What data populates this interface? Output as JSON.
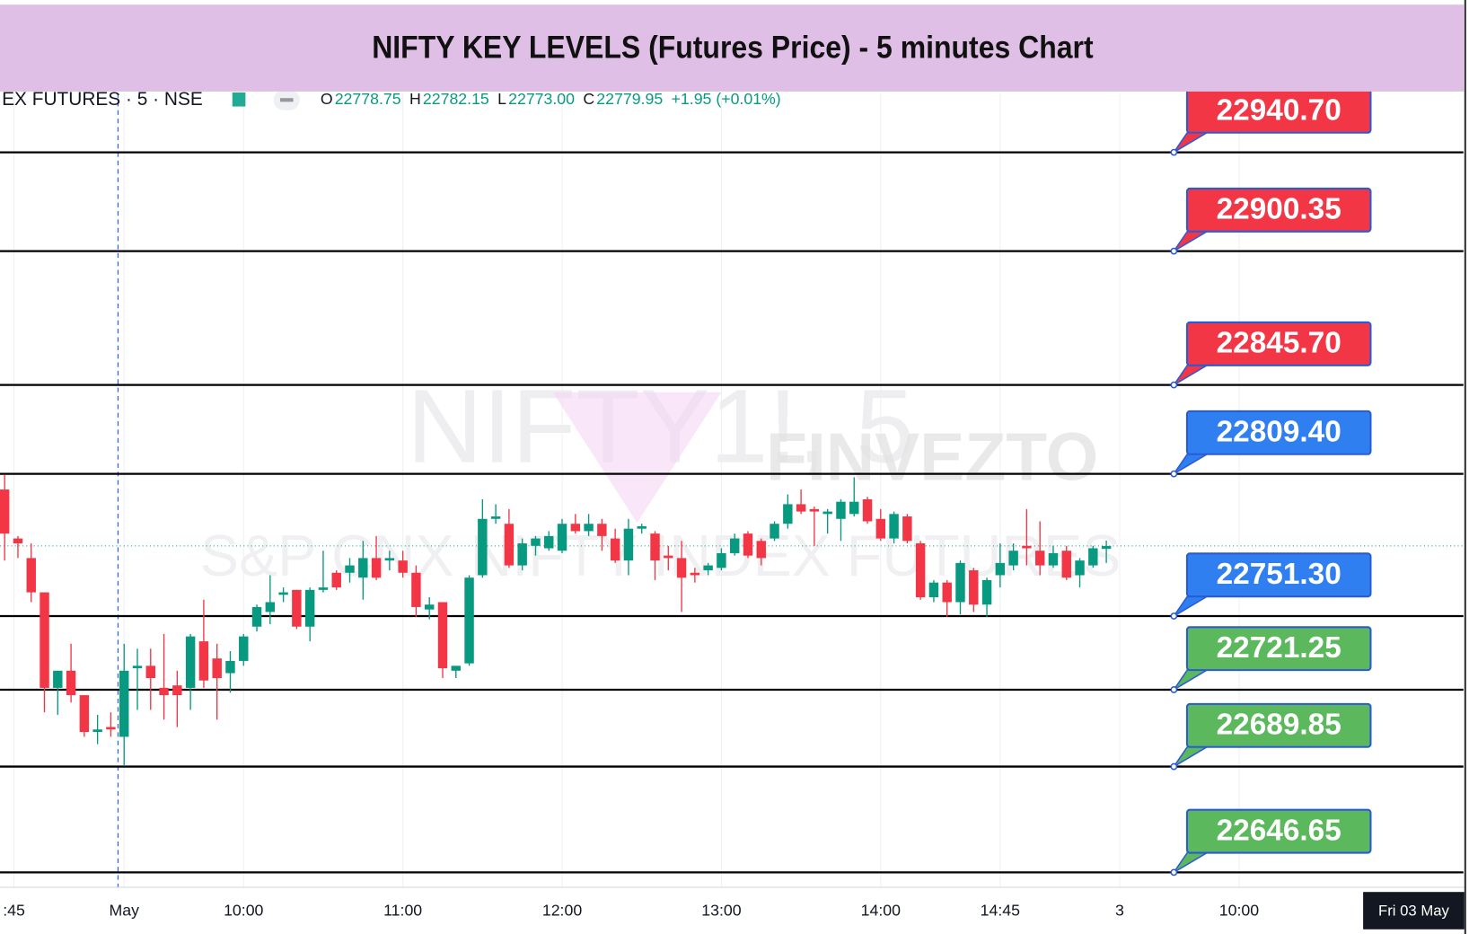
{
  "chart_data": {
    "type": "candlestick",
    "title": "NIFTY KEY LEVELS (Futures Price) - 5 minutes Chart",
    "symbol": "EX FUTURES · 5 · NSE",
    "ohlc_legend": [
      {
        "key": "O",
        "value": "22778.75"
      },
      {
        "key": "H",
        "value": "22782.15"
      },
      {
        "key": "L",
        "value": "22773.00"
      },
      {
        "key": "C",
        "value": "22779.95"
      }
    ],
    "change": "+1.95 (+0.01%)",
    "watermark": [
      "NIFTY1!, 5",
      "S&P CNX NIFTY INDEX FUTURES"
    ],
    "brand": "FINVEZTO",
    "cursor_date": "Fri 03 May",
    "up_color": "#089981",
    "down_color": "#f23645",
    "ylim": [
      22640.55,
      23002.9
    ],
    "xlim": [
      -0.35,
      109.9
    ],
    "xticks": [
      {
        "value": 0.7,
        "label": ":45"
      },
      {
        "value": 9,
        "label": "May"
      },
      {
        "value": 18,
        "label": "10:00"
      },
      {
        "value": 30,
        "label": "11:00"
      },
      {
        "value": 42,
        "label": "12:00"
      },
      {
        "value": 54,
        "label": "13:00"
      },
      {
        "value": 66,
        "label": "14:00"
      },
      {
        "value": 75,
        "label": "14:45"
      },
      {
        "value": 84,
        "label": "3"
      },
      {
        "value": 93,
        "label": "10:00"
      }
    ],
    "open": [
      22803,
      22783,
      22775,
      22761,
      22722,
      22729,
      22719,
      22704,
      22706,
      22702,
      22730,
      22731,
      22722,
      22723,
      22722,
      22741,
      22734,
      22728,
      22733,
      22747,
      22753,
      22760,
      22762,
      22747,
      22762,
      22769,
      22769,
      22767,
      22775,
      22774,
      22774,
      22769,
      22754,
      22757,
      22729,
      22732,
      22768,
      22791,
      22789,
      22772,
      22780,
      22779,
      22778,
      22789,
      22786,
      22789,
      22783,
      22774,
      22787,
      22785,
      22776,
      22775,
      22769,
      22770,
      22771,
      22777,
      22785,
      22782,
      22783,
      22789,
      22797,
      22795,
      22793,
      22791,
      22793,
      22799,
      22791,
      22783,
      22792,
      22781,
      22759,
      22765,
      22757,
      22770,
      22756,
      22768,
      22772,
      22780,
      22778,
      22772,
      22778,
      22768,
      22772,
      22778.75
    ],
    "high": [
      22809,
      22784,
      22781,
      22761,
      22729,
      22740,
      22719,
      22711,
      22712,
      22740,
      22738,
      22738,
      22744,
      22729,
      22744,
      22758,
      22740,
      22737,
      22744,
      22756,
      22768,
      22763,
      22762,
      22763,
      22778,
      22770,
      22775,
      22782,
      22784,
      22778,
      22778,
      22772,
      22759,
      22757,
      22731,
      22768,
      22799,
      22797,
      22795,
      22783,
      22784,
      22786,
      22791,
      22793,
      22793,
      22791,
      22787,
      22791,
      22789,
      22786,
      22780,
      22782,
      22771,
      22773,
      22779,
      22785,
      22786,
      22783,
      22790,
      22801,
      22803,
      22796,
      22795,
      22799,
      22808,
      22800,
      22795,
      22794,
      22793,
      22782,
      22766,
      22766,
      22774,
      22771,
      22767,
      22781,
      22781,
      22795,
      22790,
      22780,
      22780,
      22775,
      22780,
      22782.15
    ],
    "low": [
      22774,
      22775,
      22757,
      22712,
      22711,
      22716,
      22702,
      22699,
      22702,
      22690,
      22713,
      22713,
      22709,
      22706,
      22713,
      22722,
      22709,
      22720,
      22731,
      22745,
      22748,
      22757,
      22746,
      22741,
      22761,
      22762,
      22765,
      22758,
      22766,
      22770,
      22767,
      22751,
      22750,
      22726,
      22726,
      22731,
      22767,
      22789,
      22771,
      22770,
      22776,
      22778,
      22777,
      22785,
      22784,
      22778,
      22773,
      22768,
      22785,
      22766,
      22770,
      22753,
      22765,
      22768,
      22770,
      22776,
      22775,
      22772,
      22782,
      22787,
      22793,
      22780,
      22785,
      22782,
      22792,
      22789,
      22782,
      22781,
      22781,
      22758,
      22757,
      22751,
      22752,
      22753,
      22751,
      22763,
      22770,
      22772,
      22768,
      22771,
      22766,
      22763,
      22771,
      22773.0
    ],
    "close": [
      22785,
      22781,
      22761,
      22722,
      22729,
      22719,
      22704,
      22705,
      22705,
      22729,
      22731,
      22726,
      22719,
      22719,
      22743,
      22725,
      22726,
      22733,
      22743,
      22755,
      22757,
      22761,
      22747,
      22762,
      22763,
      22763,
      22772,
      22775,
      22767,
      22775,
      22769,
      22755,
      22756,
      22730,
      22731,
      22767,
      22791,
      22792,
      22772,
      22781,
      22783,
      22784,
      22789,
      22786,
      22789,
      22784,
      22774,
      22787,
      22788,
      22774,
      22775,
      22767,
      22768,
      22772,
      22777,
      22783,
      22776,
      22775,
      22789,
      22797,
      22794,
      22794,
      22794,
      22798,
      22798,
      22790,
      22783,
      22793,
      22782,
      22759,
      22765,
      22757,
      22773,
      22756,
      22766,
      22773,
      22778,
      22779,
      22772,
      22777,
      22767,
      22774,
      22779,
      22779.95
    ],
    "levels": [
      {
        "value": 22940.7,
        "label": "22940.70",
        "color": "#f23645"
      },
      {
        "value": 22900.35,
        "label": "22900.35",
        "color": "#f23645"
      },
      {
        "value": 22845.7,
        "label": "22845.70",
        "color": "#f23645"
      },
      {
        "value": 22809.4,
        "label": "22809.40",
        "color": "#2f7ff0"
      },
      {
        "value": 22751.3,
        "label": "22751.30",
        "color": "#2f7ff0"
      },
      {
        "value": 22721.25,
        "label": "22721.25",
        "color": "#5cb85c"
      },
      {
        "value": 22689.85,
        "label": "22689.85",
        "color": "#5cb85c"
      },
      {
        "value": 22646.65,
        "label": "22646.65",
        "color": "#5cb85c"
      }
    ]
  }
}
